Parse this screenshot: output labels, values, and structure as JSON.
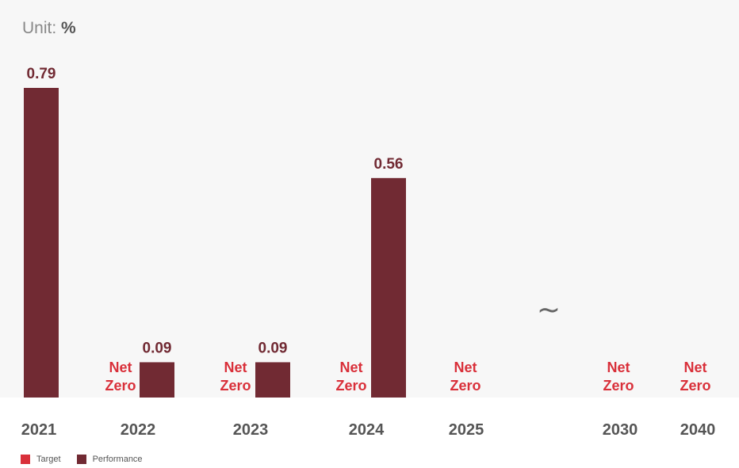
{
  "unit": {
    "label": "Unit:",
    "value": "%"
  },
  "colors": {
    "target": "#d9303a",
    "performance": "#712a33",
    "year": "#555555"
  },
  "break_symbol": "~",
  "legend": [
    {
      "name": "Target",
      "color": "#d9303a"
    },
    {
      "name": "Performance",
      "color": "#712a33"
    }
  ],
  "chart_data": {
    "type": "bar",
    "categories": [
      "2021",
      "2022",
      "2023",
      "2024",
      "2025",
      "2030",
      "2040"
    ],
    "series": [
      {
        "name": "Target",
        "values": [
          null,
          0,
          0,
          0,
          0,
          0,
          0
        ],
        "labels": [
          "",
          "Net Zero",
          "Net Zero",
          "Net Zero",
          "Net Zero",
          "Net Zero",
          "Net Zero"
        ]
      },
      {
        "name": "Performance",
        "values": [
          0.79,
          0.09,
          0.09,
          0.56,
          null,
          null,
          null
        ],
        "labels": [
          "0.79",
          "0.09",
          "0.09",
          "0.56",
          "",
          "",
          ""
        ]
      }
    ],
    "ylim": [
      0,
      0.79
    ],
    "axis_break_between": [
      "2025",
      "2030"
    ],
    "legend_position": "bottom-left",
    "grid": false
  }
}
